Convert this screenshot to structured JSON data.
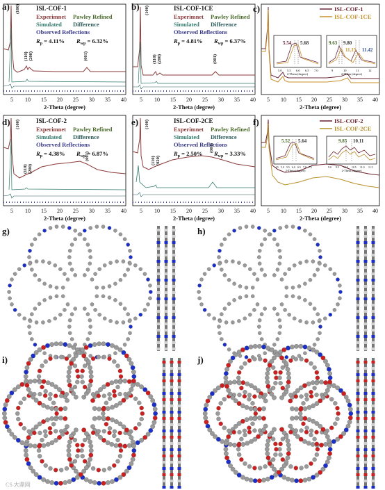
{
  "panels": {
    "a": {
      "letter": "a)",
      "title": "ISL-COF-1",
      "legend": [
        "Experimnet",
        "Pawley Refined",
        "Simulated",
        "Difference",
        "Observed Reflections"
      ],
      "rp": "4.11%",
      "rwp": "6.32%",
      "peaks": [
        "(100)",
        "(110)",
        "(200)",
        "(001)"
      ],
      "xlabel": "2-Theta (degree)",
      "xticks": [
        "5",
        "10",
        "15",
        "20",
        "25",
        "30",
        "35",
        "40"
      ]
    },
    "b": {
      "letter": "b)",
      "title": "ISL-COF-1CE",
      "legend": [
        "Experimnet",
        "Pawley Refined",
        "Simulated",
        "Difference",
        "Observed Reflections"
      ],
      "rp": "4.81%",
      "rwp": "6.37%",
      "peaks": [
        "(100)",
        "(110)",
        "(200)",
        "(001)"
      ],
      "xlabel": "2-Theta (degree)",
      "xticks": [
        "5",
        "10",
        "15",
        "20",
        "25",
        "30",
        "35",
        "40"
      ]
    },
    "c": {
      "letter": "c)",
      "legend": [
        "ISL-COF-1",
        "ISL-COF-1CE"
      ],
      "inset1": {
        "values": [
          "5.54",
          "5.68"
        ],
        "ticks": [
          "5.0",
          "5.5",
          "6.0",
          "6.5",
          "7.0"
        ],
        "xlabel": "2-Theta (degree)"
      },
      "inset2": {
        "values": [
          "9.63",
          "9.80",
          "11.15",
          "11.42"
        ],
        "ticks": [
          "9",
          "10",
          "11",
          "12"
        ],
        "xlabel": "2-Theta (degree)"
      },
      "xlabel": "2-Theta (degree)",
      "xticks": [
        "5",
        "10",
        "15",
        "20",
        "25",
        "30",
        "35",
        "40"
      ]
    },
    "d": {
      "letter": "d)",
      "title": "ISL-COF-2",
      "legend": [
        "Experimnet",
        "Pawley Refined",
        "Simulated",
        "Difference",
        "Observed Reflections"
      ],
      "rp": "4.38%",
      "rwp": "6.87%",
      "peaks": [
        "(100)",
        "(110)",
        "(200)",
        "(001)"
      ],
      "xlabel": "2-Theta (degree)",
      "xticks": [
        "5",
        "10",
        "15",
        "20",
        "25",
        "30",
        "35",
        "40"
      ]
    },
    "e": {
      "letter": "e)",
      "title": "ISL-COF-2CE",
      "legend": [
        "Experimnet",
        "Pawley Refined",
        "Simulated",
        "Difference",
        "Observed Reflections"
      ],
      "rp": "2.50%",
      "rwp": "3.33%",
      "peaks": [
        "(100)",
        "(110)",
        "(020)",
        "(001)"
      ],
      "xlabel": "2-Theta (degree)",
      "xticks": [
        "5",
        "10",
        "15",
        "20",
        "25",
        "30",
        "35",
        "40"
      ]
    },
    "f": {
      "letter": "f)",
      "legend": [
        "ISL-COF-2",
        "ISL-COF-2CE"
      ],
      "inset1": {
        "values": [
          "5.52",
          "5.64"
        ],
        "ticks": [
          "4.5",
          "5.0",
          "5.5",
          "6.0",
          "6.5",
          "7.0",
          "7.5"
        ],
        "xlabel": "2-Theta (degree)"
      },
      "inset2": {
        "values": [
          "9.85",
          "10.11"
        ],
        "ticks": [
          "9.0",
          "9.5",
          "10.0",
          "10.5",
          "11.0",
          "11.5"
        ],
        "xlabel": "2-Theta (degree)"
      },
      "xlabel": "2-Theta (degree)",
      "xticks": [
        "5",
        "10",
        "15",
        "20",
        "25",
        "30",
        "35",
        "40"
      ]
    },
    "g": {
      "letter": "g)"
    },
    "h": {
      "letter": "h)"
    },
    "i": {
      "letter": "i)"
    },
    "j": {
      "letter": "j)"
    }
  },
  "colors": {
    "experiment": "#8b3a3a",
    "pawley": "#4a6b2a",
    "simulated": "#2f7a6a",
    "difference": "#2a5a5a",
    "reflections": "#3a3a8a",
    "cof1": "#6b2a3a",
    "cof1ce": "#c8922a",
    "cof2": "#6b1f2a",
    "cof2ce": "#b8902a",
    "atom_gray": "#9a9a9a",
    "atom_blue": "#1a2fc8",
    "atom_red": "#cc1f1f"
  },
  "watermark": "CS 大鼎网"
}
